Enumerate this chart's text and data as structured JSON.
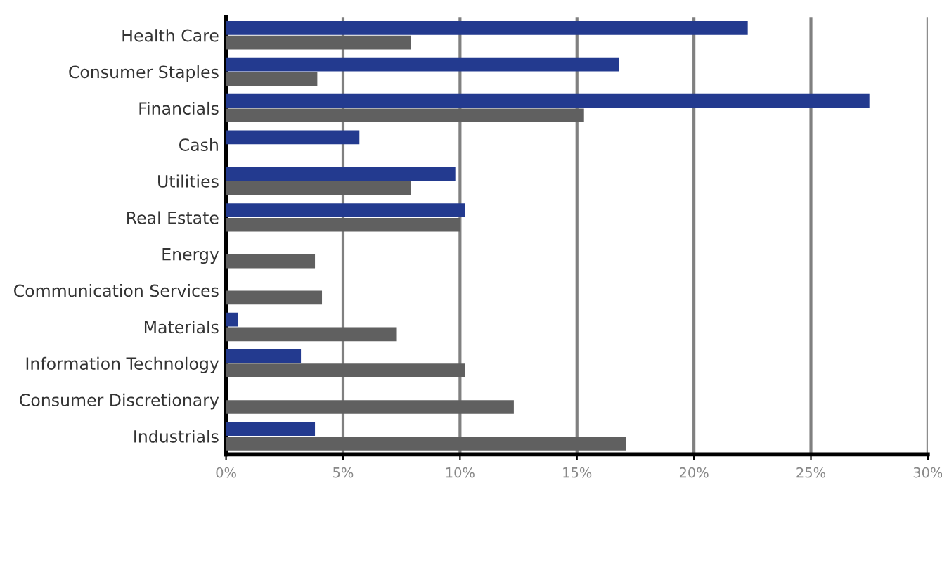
{
  "chart_data": {
    "type": "bar",
    "orientation": "horizontal",
    "categories": [
      "Health Care",
      "Consumer Staples",
      "Financials",
      "Cash",
      "Utilities",
      "Real Estate",
      "Energy",
      "Communication Services",
      "Materials",
      "Information Technology",
      "Consumer Discretionary",
      "Industrials"
    ],
    "series": [
      {
        "color": "#233a8f",
        "values": [
          22.3,
          16.8,
          27.5,
          5.7,
          9.8,
          10.2,
          null,
          null,
          0.5,
          3.2,
          null,
          3.8
        ]
      },
      {
        "color": "#606060",
        "values": [
          7.9,
          3.9,
          15.3,
          null,
          7.9,
          10.0,
          3.8,
          4.1,
          7.3,
          10.2,
          12.3,
          17.1
        ]
      }
    ],
    "xlim": [
      0,
      30
    ],
    "xticks": [
      {
        "value": 0,
        "label": "0%"
      },
      {
        "value": 5,
        "label": "5%"
      },
      {
        "value": 10,
        "label": "10%"
      },
      {
        "value": 15,
        "label": "15%"
      },
      {
        "value": 20,
        "label": "20%"
      },
      {
        "value": 25,
        "label": "25%"
      },
      {
        "value": 30,
        "label": "30%"
      }
    ],
    "grid": "x",
    "legend": false
  }
}
